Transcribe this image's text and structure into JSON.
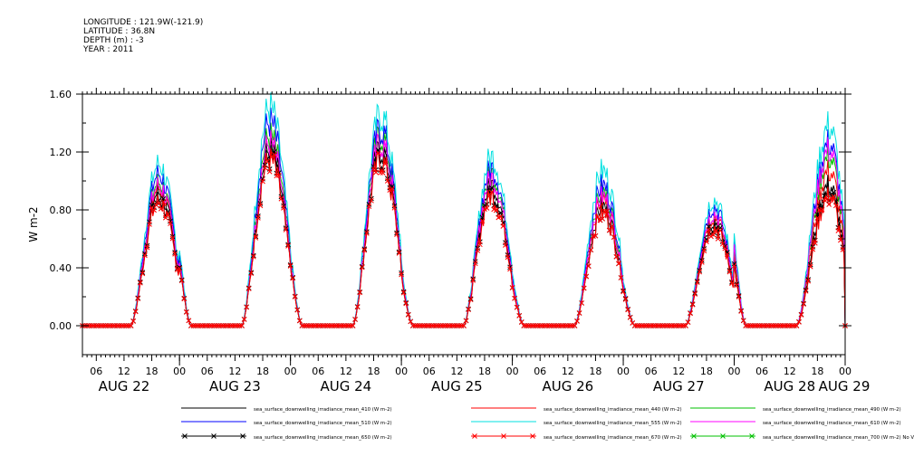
{
  "header": {
    "longitude": "LONGITUDE : 121.9W(-121.9)",
    "latitude": "LATITUDE : 36.8N",
    "depth": "DEPTH (m) : -3",
    "year": "YEAR : 2011"
  },
  "chart_data": {
    "type": "line",
    "ylabel": "W m-2",
    "ylim": [
      -0.2,
      1.6
    ],
    "y_ticks": [
      "0.00",
      "0.40",
      "0.80",
      "1.20",
      "1.60"
    ],
    "x_hour_labels": [
      "06",
      "12",
      "18",
      "00",
      "06",
      "12",
      "18",
      "00",
      "06",
      "12",
      "18",
      "00",
      "06",
      "12",
      "18",
      "00",
      "06",
      "12",
      "18",
      "00",
      "06",
      "12",
      "18",
      "00",
      "06",
      "12",
      "18",
      "00"
    ],
    "x_day_labels": [
      "AUG 22",
      "AUG 23",
      "AUG 24",
      "AUG 25",
      "AUG 26",
      "AUG 27",
      "AUG 28",
      "AUG 29"
    ],
    "x_start": "2011-08-22 03:00",
    "x_end": "2011-08-29 00:00",
    "daily_peaks": {
      "days": [
        "AUG 22",
        "AUG 23",
        "AUG 24",
        "AUG 25",
        "AUG 26",
        "AUG 27",
        "AUG 28"
      ],
      "peak_hour": [
        19,
        19,
        19,
        19,
        19,
        19,
        20
      ]
    },
    "series": [
      {
        "name": "sea_surface_downwelling_irradiance_mean_410 (W m-2)",
        "color": "#000000",
        "marker": "",
        "peaks": [
          0.95,
          1.25,
          1.25,
          1.0,
          0.85,
          0.75,
          1.0
        ]
      },
      {
        "name": "sea_surface_downwelling_irradiance_mean_440 (W m-2)",
        "color": "#ff0000",
        "marker": "",
        "peaks": [
          0.98,
          1.3,
          1.3,
          1.05,
          0.9,
          0.78,
          1.1
        ]
      },
      {
        "name": "sea_surface_downwelling_irradiance_mean_490 (W m-2)",
        "color": "#00c000",
        "marker": "",
        "peaks": [
          1.02,
          1.35,
          1.35,
          1.08,
          0.95,
          0.8,
          1.2
        ]
      },
      {
        "name": "sea_surface_downwelling_irradiance_mean_510 (W m-2)",
        "color": "#0000ff",
        "marker": "",
        "peaks": [
          1.08,
          1.45,
          1.4,
          1.12,
          1.0,
          0.85,
          1.3
        ]
      },
      {
        "name": "sea_surface_downwelling_irradiance_mean_555 (W m-2)",
        "color": "#00e0e0",
        "marker": "",
        "peaks": [
          1.15,
          1.55,
          1.5,
          1.2,
          1.1,
          0.9,
          1.42
        ]
      },
      {
        "name": "sea_surface_downwelling_irradiance_mean_610 (W m-2)",
        "color": "#ff00ff",
        "marker": "",
        "peaks": [
          1.0,
          1.3,
          1.3,
          1.05,
          0.92,
          0.8,
          1.25
        ]
      },
      {
        "name": "sea_surface_downwelling_irradiance_mean_650 (W m-2)",
        "color": "#000000",
        "marker": "x",
        "peaks": [
          0.9,
          1.2,
          1.2,
          0.95,
          0.8,
          0.72,
          0.95
        ]
      },
      {
        "name": "sea_surface_downwelling_irradiance_mean_670 (W m-2)",
        "color": "#ff0000",
        "marker": "x",
        "peaks": [
          0.88,
          1.18,
          1.18,
          0.92,
          0.8,
          0.7,
          0.92
        ]
      },
      {
        "name": "sea_surface_downwelling_irradiance_mean_700 (W m-2) No Valid Data",
        "color": "#00c000",
        "marker": "x",
        "peaks": null
      }
    ],
    "legend_position": "bottom"
  }
}
